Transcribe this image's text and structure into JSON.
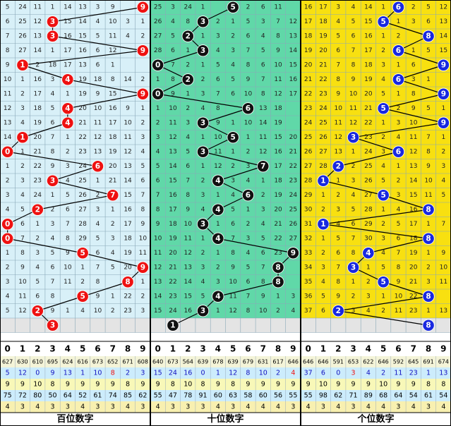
{
  "chart_data": {
    "type": "table",
    "panels": [
      {
        "name": "百位数字",
        "bg": "#d8f0f8",
        "ball_color": "#ee1111",
        "rows": [
          [
            "5",
            "24",
            "11",
            "1",
            "14",
            "13",
            "3",
            "9",
            "",
            ""
          ],
          [
            "6",
            "25",
            "12",
            "",
            "15",
            "14",
            "4",
            "10",
            "3",
            "1"
          ],
          [
            "7",
            "26",
            "13",
            "",
            "16",
            "15",
            "5",
            "11",
            "4",
            "2"
          ],
          [
            "8",
            "27",
            "14",
            "1",
            "17",
            "16",
            "6",
            "12",
            "",
            ""
          ],
          [
            "9",
            "",
            "2",
            "18",
            "17",
            "13",
            "6",
            "1"
          ],
          [
            "10",
            "1",
            "16",
            "3",
            "",
            "19",
            "18",
            "8",
            "14",
            "2"
          ],
          [
            "11",
            "2",
            "17",
            "4",
            "1",
            "19",
            "9",
            "15",
            "",
            ""
          ],
          [
            "12",
            "3",
            "18",
            "5",
            "",
            "20",
            "10",
            "16",
            "9",
            "1"
          ],
          [
            "13",
            "4",
            "19",
            "6",
            "",
            "21",
            "11",
            "17",
            "10",
            "2"
          ],
          [
            "14",
            "",
            "20",
            "7",
            "1",
            "22",
            "12",
            "18",
            "11",
            "3"
          ],
          [
            "",
            "1",
            "21",
            "8",
            "2",
            "23",
            "13",
            "19",
            "12",
            "4"
          ],
          [
            "1",
            "2",
            "22",
            "9",
            "3",
            "24",
            "",
            "20",
            "13",
            "5"
          ],
          [
            "2",
            "3",
            "23",
            "",
            "4",
            "25",
            "1",
            "21",
            "14",
            "6"
          ],
          [
            "3",
            "4",
            "24",
            "1",
            "5",
            "26",
            "2",
            "",
            "15",
            "7"
          ],
          [
            "4",
            "5",
            "",
            "2",
            "6",
            "27",
            "3",
            "1",
            "16",
            "8"
          ],
          [
            "",
            "6",
            "1",
            "3",
            "7",
            "28",
            "4",
            "2",
            "17",
            "9"
          ],
          [
            "",
            "7",
            "2",
            "4",
            "8",
            "29",
            "5",
            "3",
            "18",
            "10"
          ],
          [
            "1",
            "8",
            "3",
            "5",
            "9",
            "",
            "6",
            "4",
            "19",
            "11"
          ],
          [
            "2",
            "9",
            "4",
            "6",
            "10",
            "1",
            "7",
            "5",
            "20",
            ""
          ],
          [
            "3",
            "10",
            "5",
            "7",
            "11",
            "2",
            "8",
            "",
            "21",
            "1"
          ],
          [
            "4",
            "11",
            "6",
            "8",
            "",
            "3",
            "9",
            "1",
            "22",
            "2"
          ],
          [
            "5",
            "12",
            "",
            "9",
            "1",
            "4",
            "10",
            "2",
            "23",
            "3"
          ],
          [
            "",
            "",
            "",
            "",
            "",
            "",
            "",
            "",
            "",
            ""
          ]
        ],
        "balls": [
          9,
          3,
          3,
          9,
          1,
          4,
          9,
          4,
          4,
          1,
          0,
          6,
          3,
          7,
          2,
          0,
          0,
          5,
          9,
          8,
          5,
          2,
          3
        ],
        "digits": [
          "0",
          "1",
          "2",
          "3",
          "4",
          "5",
          "6",
          "7",
          "8",
          "9"
        ],
        "stat_rows": [
          [
            "627",
            "630",
            "610",
            "695",
            "624",
            "616",
            "673",
            "652",
            "671",
            "608"
          ],
          [
            "5",
            "12",
            "0",
            "9",
            "13",
            "1",
            "10",
            "8",
            "2",
            "3"
          ],
          [
            "9",
            "9",
            "10",
            "8",
            "9",
            "9",
            "9",
            "9",
            "8",
            "9"
          ],
          [
            "75",
            "72",
            "80",
            "50",
            "64",
            "52",
            "61",
            "74",
            "85",
            "62"
          ],
          [
            "4",
            "3",
            "4",
            "3",
            "3",
            "4",
            "3",
            "3",
            "4",
            "3"
          ]
        ]
      },
      {
        "name": "十位数字",
        "bg": "#60d8a8",
        "ball_color": "#111111",
        "rows": [
          [
            "25",
            "3",
            "24",
            "1",
            "",
            "4",
            "2",
            "6",
            "11"
          ],
          [
            "26",
            "4",
            "8",
            "",
            "2",
            "1",
            "5",
            "3",
            "7",
            "12"
          ],
          [
            "27",
            "5",
            "",
            "1",
            "3",
            "2",
            "6",
            "4",
            "8",
            "13"
          ],
          [
            "28",
            "6",
            "1",
            "",
            "4",
            "3",
            "7",
            "5",
            "9",
            "14"
          ],
          [
            "",
            "7",
            "2",
            "1",
            "5",
            "4",
            "8",
            "6",
            "10",
            "15"
          ],
          [
            "1",
            "8",
            "",
            "2",
            "6",
            "5",
            "9",
            "7",
            "11",
            "16"
          ],
          [
            "",
            "9",
            "1",
            "3",
            "7",
            "6",
            "10",
            "8",
            "12",
            "17"
          ],
          [
            "1",
            "10",
            "2",
            "4",
            "8",
            "",
            "9",
            "13",
            "18"
          ],
          [
            "2",
            "11",
            "3",
            "",
            "9",
            "1",
            "10",
            "14",
            "19"
          ],
          [
            "3",
            "12",
            "4",
            "1",
            "10",
            "",
            "1",
            "11",
            "15",
            "20"
          ],
          [
            "4",
            "13",
            "5",
            "",
            "11",
            "1",
            "2",
            "12",
            "16",
            "21"
          ],
          [
            "5",
            "14",
            "6",
            "1",
            "12",
            "2",
            "3",
            "",
            "17",
            "22"
          ],
          [
            "6",
            "15",
            "7",
            "2",
            "",
            "3",
            "4",
            "1",
            "18",
            "23"
          ],
          [
            "7",
            "16",
            "8",
            "3",
            "1",
            "4",
            "",
            "2",
            "19",
            "24"
          ],
          [
            "8",
            "17",
            "9",
            "4",
            "",
            "5",
            "1",
            "3",
            "20",
            "25"
          ],
          [
            "9",
            "18",
            "10",
            "",
            "1",
            "6",
            "2",
            "4",
            "21",
            "26"
          ],
          [
            "10",
            "19",
            "11",
            "1",
            "",
            "7",
            "3",
            "5",
            "22",
            "27"
          ],
          [
            "11",
            "20",
            "12",
            "2",
            "1",
            "8",
            "4",
            "6",
            "23",
            ""
          ],
          [
            "12",
            "21",
            "13",
            "3",
            "2",
            "9",
            "5",
            "7",
            "",
            ""
          ],
          [
            "13",
            "22",
            "14",
            "4",
            "3",
            "10",
            "6",
            "8",
            "",
            ""
          ],
          [
            "14",
            "23",
            "15",
            "5",
            "",
            "11",
            "7",
            "9",
            "1",
            "3"
          ],
          [
            "15",
            "24",
            "16",
            "",
            "1",
            "12",
            "8",
            "10",
            "2",
            "4"
          ],
          [
            "",
            "",
            "",
            "",
            "",
            "",
            "",
            "",
            "",
            ""
          ]
        ],
        "balls": [
          5,
          3,
          2,
          3,
          0,
          2,
          0,
          6,
          3,
          5,
          3,
          7,
          4,
          6,
          4,
          3,
          4,
          9,
          8,
          8,
          4,
          3,
          1
        ],
        "digits": [
          "0",
          "1",
          "2",
          "3",
          "4",
          "5",
          "6",
          "7",
          "8",
          "9"
        ],
        "stat_rows": [
          [
            "640",
            "673",
            "564",
            "639",
            "678",
            "639",
            "679",
            "631",
            "617",
            "646"
          ],
          [
            "15",
            "24",
            "16",
            "0",
            "1",
            "12",
            "8",
            "10",
            "2",
            "4"
          ],
          [
            "9",
            "8",
            "10",
            "8",
            "9",
            "8",
            "9",
            "9",
            "9",
            "9"
          ],
          [
            "55",
            "47",
            "78",
            "91",
            "60",
            "63",
            "58",
            "60",
            "56",
            "55"
          ],
          [
            "4",
            "3",
            "3",
            "3",
            "4",
            "3",
            "4",
            "4",
            "4",
            "3"
          ]
        ]
      },
      {
        "name": "个位数字",
        "bg": "#f8e010",
        "ball_color": "#1828e0",
        "rows": [
          [
            "16",
            "17",
            "3",
            "4",
            "14",
            "1",
            "",
            "2",
            "5",
            "12"
          ],
          [
            "17",
            "18",
            "4",
            "5",
            "15",
            "",
            "1",
            "3",
            "6",
            "13"
          ],
          [
            "18",
            "19",
            "5",
            "6",
            "16",
            "1",
            "2",
            "",
            "7",
            "14"
          ],
          [
            "19",
            "20",
            "6",
            "7",
            "17",
            "2",
            "",
            "1",
            "5",
            "15"
          ],
          [
            "20",
            "21",
            "7",
            "8",
            "18",
            "3",
            "1",
            "6",
            "",
            ""
          ],
          [
            "21",
            "22",
            "8",
            "9",
            "19",
            "4",
            "",
            "3",
            "1"
          ],
          [
            "22",
            "23",
            "9",
            "10",
            "20",
            "5",
            "1",
            "8",
            "",
            ""
          ],
          [
            "23",
            "24",
            "10",
            "11",
            "21",
            "",
            "2",
            "9",
            "5",
            "1"
          ],
          [
            "24",
            "25",
            "11",
            "12",
            "22",
            "1",
            "3",
            "10",
            "",
            ""
          ],
          [
            "25",
            "26",
            "12",
            "",
            "23",
            "2",
            "4",
            "11",
            "7",
            "1"
          ],
          [
            "26",
            "27",
            "13",
            "1",
            "24",
            "3",
            "",
            "12",
            "8",
            "2"
          ],
          [
            "27",
            "28",
            "",
            "2",
            "25",
            "4",
            "1",
            "13",
            "9",
            "3"
          ],
          [
            "28",
            "",
            "1",
            "3",
            "26",
            "5",
            "2",
            "14",
            "10",
            "4"
          ],
          [
            "29",
            "1",
            "2",
            "4",
            "27",
            "",
            "3",
            "15",
            "11",
            "5"
          ],
          [
            "30",
            "2",
            "3",
            "5",
            "28",
            "1",
            "4",
            "16",
            "",
            ""
          ],
          [
            "31",
            "",
            "4",
            "6",
            "29",
            "2",
            "5",
            "17",
            "1",
            "7"
          ],
          [
            "32",
            "1",
            "5",
            "7",
            "30",
            "3",
            "6",
            "18",
            "",
            ""
          ],
          [
            "33",
            "2",
            "6",
            "8",
            "",
            "4",
            "7",
            "19",
            "1",
            "9"
          ],
          [
            "34",
            "3",
            "7",
            "",
            "1",
            "5",
            "8",
            "20",
            "2",
            "10"
          ],
          [
            "35",
            "4",
            "8",
            "1",
            "2",
            "",
            "9",
            "21",
            "3",
            "11"
          ],
          [
            "36",
            "5",
            "9",
            "2",
            "3",
            "1",
            "10",
            "22",
            "",
            ""
          ],
          [
            "37",
            "6",
            "",
            "3",
            "4",
            "2",
            "11",
            "23",
            "1",
            "13"
          ],
          [
            "",
            "",
            "",
            "",
            "",
            "",
            "",
            "",
            "",
            ""
          ]
        ],
        "balls": [
          6,
          5,
          8,
          6,
          9,
          6,
          9,
          5,
          9,
          3,
          6,
          2,
          1,
          5,
          8,
          1,
          8,
          4,
          3,
          5,
          8,
          2,
          8
        ],
        "digits": [
          "0",
          "1",
          "2",
          "3",
          "4",
          "5",
          "6",
          "7",
          "8",
          "9"
        ],
        "stat_rows": [
          [
            "646",
            "646",
            "591",
            "653",
            "622",
            "646",
            "592",
            "645",
            "691",
            "674"
          ],
          [
            "37",
            "6",
            "0",
            "3",
            "4",
            "2",
            "11",
            "23",
            "1",
            "13"
          ],
          [
            "9",
            "10",
            "9",
            "9",
            "9",
            "10",
            "9",
            "9",
            "8",
            "8"
          ],
          [
            "55",
            "98",
            "62",
            "71",
            "89",
            "68",
            "64",
            "54",
            "61",
            "54"
          ],
          [
            "4",
            "3",
            "4",
            "3",
            "4",
            "4",
            "3",
            "4",
            "3",
            "4"
          ]
        ]
      }
    ],
    "stat_row_colors": [
      "#f4f4d8",
      "#ccecfc",
      "#f8f8b8",
      "#ccecfc",
      "#f8f0b0"
    ],
    "stat_text_colors": [
      "#000000",
      "#1010c0",
      "#000000",
      "#000000",
      "#000000"
    ],
    "highlight": {
      "panel0_row1_col7": "#ee1111",
      "panel1_row1_col9": "#ee1111",
      "panel2_row1_col3": "#ee1111"
    }
  }
}
